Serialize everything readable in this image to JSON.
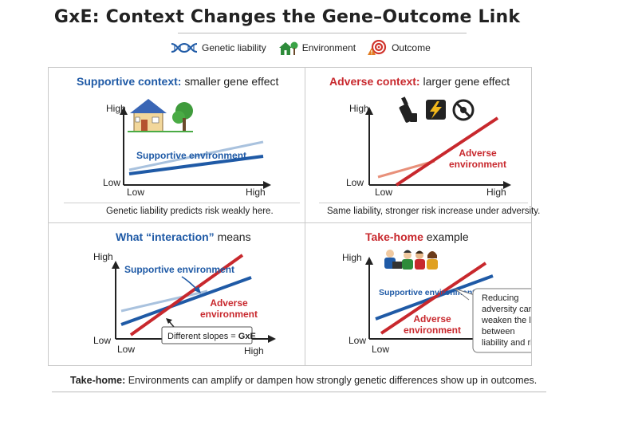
{
  "title": "GxE: Context Changes the Gene–Outcome Link",
  "legend": {
    "genetic": "Genetic liability",
    "environment": "Environment",
    "outcome": "Outcome"
  },
  "colors": {
    "blue": "#1f5aa6",
    "light_blue": "#a9c2de",
    "red": "#c8282d",
    "salmon": "#e8907a"
  },
  "panel1": {
    "title_bold": "Supportive context:",
    "title_rest": "smaller gene effect",
    "y_high": "High",
    "y_low": "Low",
    "x_low": "Low",
    "x_high": "High",
    "line_label": "Supportive environment",
    "caption": "Genetic liability predicts risk weakly here."
  },
  "panel2": {
    "title_bold": "Adverse context:",
    "title_rest": "larger gene effect",
    "y_high": "High",
    "y_low": "Low",
    "x_low": "Low",
    "x_high": "High",
    "line_label_1": "Adverse",
    "line_label_2": "environment",
    "caption": "Same liability, stronger risk increase under adversity."
  },
  "panel3": {
    "title_a": "What ",
    "title_b": "“interaction”",
    "title_c": " means",
    "y_high": "High",
    "y_low": "Low",
    "x_low": "Low",
    "x_high": "High",
    "supportive_label": "Supportive environment",
    "adverse_label_1": "Adverse",
    "adverse_label_2": "environment",
    "callout": "Different slopes = ",
    "callout_bold": "GxE"
  },
  "panel4": {
    "title_bold": "Take-home",
    "title_rest": " example",
    "y_high": "High",
    "y_low": "Low",
    "x_low": "Low",
    "supportive_label": "Supportive environment",
    "adverse_label_1": "Adverse",
    "adverse_label_2": "environment",
    "note_lines": [
      "Reducing",
      "adversity can",
      "weaken the link",
      "between",
      "liability and risk."
    ]
  },
  "takehome": {
    "label": "Take-home:",
    "text": " Environments can amplify or dampen how strongly genetic differences show up in outcomes."
  }
}
